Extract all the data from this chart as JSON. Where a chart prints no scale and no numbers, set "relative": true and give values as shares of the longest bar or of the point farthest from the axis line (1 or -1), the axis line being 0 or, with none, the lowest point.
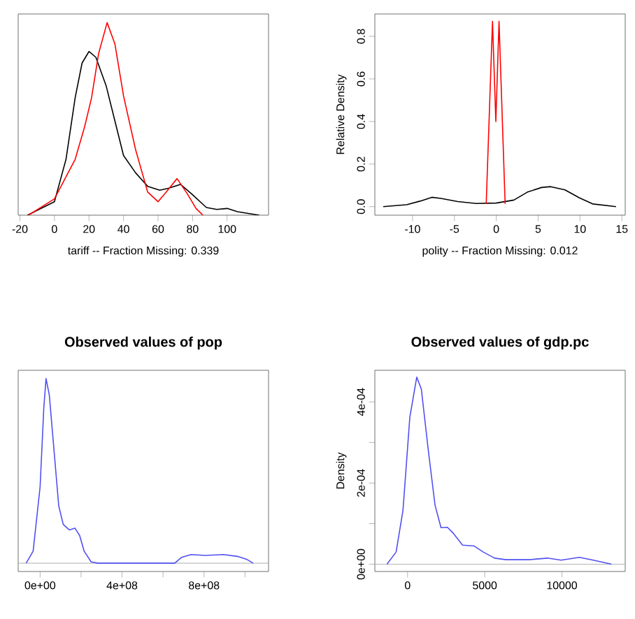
{
  "chart_data": [
    {
      "type": "line",
      "relative": true,
      "tick_labels": "x",
      "xlabel": "tariff -- Fraction Missing: 0.339",
      "xlim": [
        -21,
        124
      ],
      "xticks": [
        -20,
        0,
        20,
        40,
        60,
        80,
        100
      ],
      "series": [
        {
          "color": "#000000",
          "x": [
            -15.6,
            0,
            6.7,
            12,
            16,
            20,
            24,
            30,
            35,
            40,
            47,
            54,
            61,
            66,
            73,
            79.5,
            88,
            94,
            100,
            106,
            118.6
          ],
          "values": [
            0,
            0.07,
            0.29,
            0.61,
            0.79,
            0.85,
            0.82,
            0.67,
            0.49,
            0.31,
            0.22,
            0.15,
            0.13,
            0.14,
            0.16,
            0.11,
            0.04,
            0.03,
            0.035,
            0.018,
            0
          ]
        },
        {
          "color": "#ff0000",
          "x": [
            -15,
            0,
            12,
            17.5,
            21.5,
            25.6,
            30.5,
            35,
            40,
            47,
            54,
            60,
            64.7,
            71,
            77,
            82,
            86
          ],
          "values": [
            0,
            0.085,
            0.29,
            0.46,
            0.61,
            0.84,
            1,
            0.89,
            0.62,
            0.34,
            0.12,
            0.07,
            0.12,
            0.19,
            0.11,
            0.035,
            0
          ]
        }
      ]
    },
    {
      "type": "line",
      "xlabel": "polity -- Fraction Missing: 0.012",
      "ylabel": "Relative Density",
      "xlim": [
        -14.5,
        15.4
      ],
      "xticks": [
        -10,
        -5,
        0,
        5,
        10,
        15
      ],
      "ylim": [
        -0.04,
        0.905
      ],
      "yticks": [
        {
          "value": 0,
          "label": "0.0"
        },
        0.2,
        0.4,
        0.6,
        0.8
      ],
      "series": [
        {
          "color": "#000000",
          "x": [
            -13.5,
            -10.7,
            -9.1,
            -7.7,
            -6.6,
            -4.6,
            -2.4,
            0,
            2.1,
            3.7,
            5.4,
            6.5,
            8.2,
            9.9,
            11.5,
            14.3
          ],
          "values": [
            0,
            0.009,
            0.026,
            0.044,
            0.039,
            0.024,
            0.015,
            0.017,
            0.031,
            0.068,
            0.09,
            0.094,
            0.079,
            0.042,
            0.013,
            0
          ]
        },
        {
          "color": "#ff0000",
          "x": [
            -1.2,
            -0.45,
            -0.05,
            0.33,
            1.06
          ],
          "values": [
            0.013,
            0.87,
            0.4,
            0.87,
            0.013
          ]
        }
      ]
    },
    {
      "type": "line",
      "relative": true,
      "tick_labels": "x",
      "title": "Observed values of pop",
      "xlim": [
        -107000000,
        1115000000
      ],
      "xticks": [
        {
          "value": 0,
          "label": "0e+00"
        },
        {
          "value": 200000000,
          "label": null
        },
        {
          "value": 400000000,
          "label": "4e+08"
        },
        {
          "value": 600000000,
          "label": null
        },
        {
          "value": 800000000,
          "label": "8e+08"
        },
        {
          "value": 1000000000,
          "label": null
        }
      ],
      "ref_lines": [
        {
          "axis": "y",
          "value": 0,
          "color": "#bebebe"
        }
      ],
      "series": [
        {
          "color": "#5050f0",
          "x": [
            -68000000,
            -34000000,
            0,
            18000000,
            29000000,
            45000000,
            68000000,
            91000000,
            113000000,
            143000000,
            170000000,
            193000000,
            215000000,
            249000000,
            283000000,
            657000000,
            691000000,
            737000000,
            805000000,
            895000000,
            963000000,
            1010000000,
            1040000000
          ],
          "values": [
            0,
            0.065,
            0.414,
            0.84,
            1,
            0.91,
            0.61,
            0.31,
            0.21,
            0.18,
            0.19,
            0.15,
            0.065,
            0.007,
            0,
            0,
            0.032,
            0.047,
            0.042,
            0.047,
            0.037,
            0.02,
            0
          ]
        }
      ]
    },
    {
      "type": "line",
      "title": "Observed values of gdp.pc",
      "ylabel": "Density",
      "xlim": [
        -2120,
        14100
      ],
      "xticks": [
        0,
        5000,
        10000
      ],
      "ylim": [
        -1.8e-05,
        0.000478
      ],
      "yticks": [
        {
          "value": 0,
          "label": "0e+00"
        },
        {
          "value": 0.0001,
          "label": null
        },
        {
          "value": 0.0002,
          "label": "2e-04"
        },
        {
          "value": 0.0003,
          "label": null
        },
        {
          "value": 0.0004,
          "label": "4e-04"
        }
      ],
      "ref_lines": [
        {
          "axis": "y",
          "value": 0,
          "color": "#bebebe"
        }
      ],
      "series": [
        {
          "color": "#5050f0",
          "x": [
            -1335,
            -742,
            -297,
            148,
            594,
            890,
            1336,
            1781,
            2167,
            2582,
            2969,
            3562,
            4305,
            4899,
            5641,
            6384,
            7868,
            9056,
            9947,
            11134,
            12025,
            13213
          ],
          "values": [
            0,
            3e-05,
            0.000133,
            0.000363,
            0.000461,
            0.000432,
            0.000283,
            0.000145,
            9e-05,
            9.1e-05,
            7.6e-05,
            4.7e-05,
            4.5e-05,
            3e-05,
            1.5e-05,
            1.1e-05,
            1.1e-05,
            1.5e-05,
            1e-05,
            1.7e-05,
            1e-05,
            0
          ]
        }
      ]
    }
  ]
}
